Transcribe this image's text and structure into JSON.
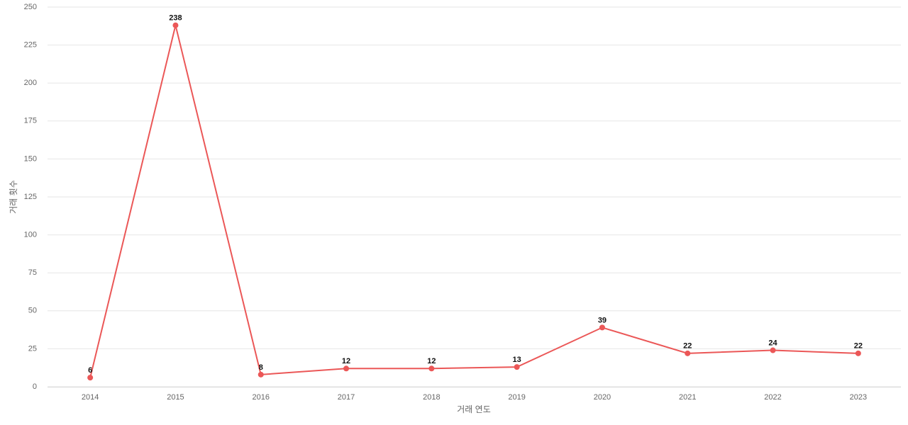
{
  "chart_data": {
    "type": "line",
    "x_label": "거래 연도",
    "y_label": "거래 횟수",
    "categories": [
      "2014",
      "2015",
      "2016",
      "2017",
      "2018",
      "2019",
      "2020",
      "2021",
      "2022",
      "2023"
    ],
    "values": [
      6,
      238,
      8,
      12,
      12,
      13,
      39,
      22,
      24,
      22
    ],
    "color": "#eb5757",
    "ylim": [
      0,
      250
    ],
    "yticks": [
      0,
      25,
      50,
      75,
      100,
      125,
      150,
      175,
      200,
      225,
      250
    ],
    "grid": true
  }
}
